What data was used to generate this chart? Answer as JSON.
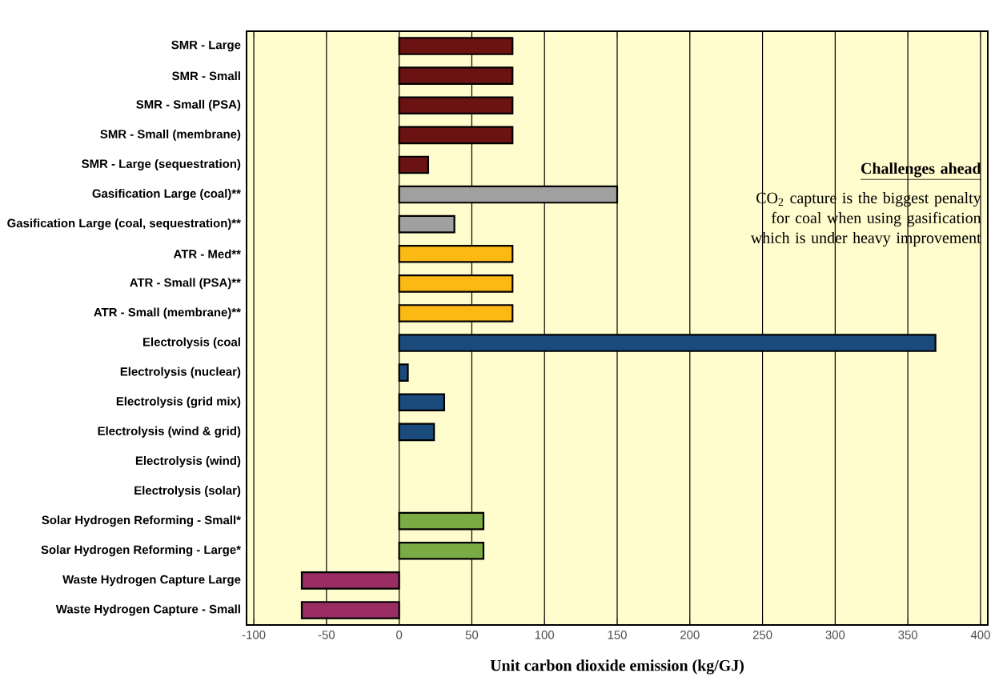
{
  "chart_data": {
    "type": "bar",
    "orientation": "horizontal",
    "xlabel": "Unit carbon dioxide emission (kg/GJ)",
    "categories": [
      "SMR - Large",
      "SMR - Small",
      "SMR - Small (PSA)",
      "SMR - Small (membrane)",
      "SMR - Large (sequestration)",
      "Gasification Large (coal)**",
      "Gasification Large (coal, sequestration)**",
      "ATR - Med**",
      "ATR - Small (PSA)**",
      "ATR - Small (membrane)**",
      "Electrolysis (coal",
      "Electrolysis (nuclear)",
      "Electrolysis (grid mix)",
      "Electrolysis (wind & grid)",
      "Electrolysis (wind)",
      "Electrolysis (solar)",
      "Solar Hydrogen Reforming - Small*",
      "Solar Hydrogen Reforming - Large*",
      "Waste Hydrogen Capture Large",
      "Waste Hydrogen Capture - Small"
    ],
    "values": [
      78,
      78,
      78,
      78,
      20,
      150,
      38,
      78,
      78,
      78,
      369,
      6,
      31,
      24,
      0,
      0,
      58,
      58,
      -67,
      -67
    ],
    "colors": [
      "#6b1212",
      "#6b1212",
      "#6b1212",
      "#6b1212",
      "#6b1212",
      "#a0a0a0",
      "#a0a0a0",
      "#fdb913",
      "#fdb913",
      "#fdb913",
      "#1b4a7c",
      "#1b4a7c",
      "#1b4a7c",
      "#1b4a7c",
      "#1b4a7c",
      "#1b4a7c",
      "#7aab45",
      "#7aab45",
      "#9b2d65",
      "#9b2d65"
    ],
    "xlim": [
      -105,
      405
    ],
    "xticks": [
      -100,
      -50,
      0,
      50,
      100,
      150,
      200,
      250,
      300,
      350,
      400
    ],
    "grid": "x",
    "annotations": [
      "Challenges ahead",
      "CO$_{2}$ capture is the biggest penalty for coal when using gasification which is under heavy improvement"
    ]
  }
}
